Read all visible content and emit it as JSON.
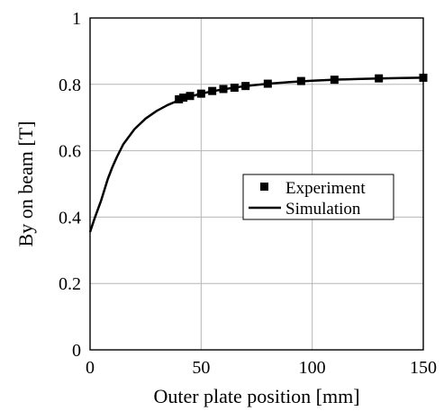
{
  "chart_data": {
    "type": "line",
    "xlabel": "Outer plate position [mm]",
    "ylabel": "By on beam [T]",
    "xlim": [
      0,
      150
    ],
    "ylim": [
      0,
      1
    ],
    "x_ticks": [
      0,
      50,
      100,
      150
    ],
    "x_tick_labels": [
      "0",
      "50",
      "100",
      "150"
    ],
    "y_ticks": [
      0,
      0.2,
      0.4,
      0.6,
      0.8,
      1
    ],
    "y_tick_labels": [
      "0",
      "0.2",
      "0.4",
      "0.6",
      "0.8",
      "1"
    ],
    "grid": true,
    "legend_position": "right",
    "series": [
      {
        "name": "Experiment",
        "style": "markers",
        "marker": "square",
        "color": "#000000",
        "x": [
          40,
          42,
          45,
          50,
          55,
          60,
          65,
          70,
          80,
          95,
          110,
          130,
          150
        ],
        "y": [
          0.755,
          0.76,
          0.765,
          0.772,
          0.78,
          0.786,
          0.79,
          0.795,
          0.802,
          0.81,
          0.814,
          0.818,
          0.82
        ]
      },
      {
        "name": "Simulation",
        "style": "line",
        "color": "#000000",
        "x": [
          0,
          2,
          5,
          8,
          10,
          12,
          15,
          20,
          25,
          30,
          35,
          40,
          45,
          50,
          55,
          60,
          70,
          80,
          90,
          100,
          110,
          120,
          130,
          140,
          150
        ],
        "y": [
          0.355,
          0.395,
          0.45,
          0.515,
          0.55,
          0.58,
          0.62,
          0.665,
          0.697,
          0.72,
          0.738,
          0.752,
          0.763,
          0.772,
          0.779,
          0.785,
          0.795,
          0.802,
          0.807,
          0.811,
          0.814,
          0.816,
          0.818,
          0.819,
          0.82
        ]
      }
    ]
  }
}
